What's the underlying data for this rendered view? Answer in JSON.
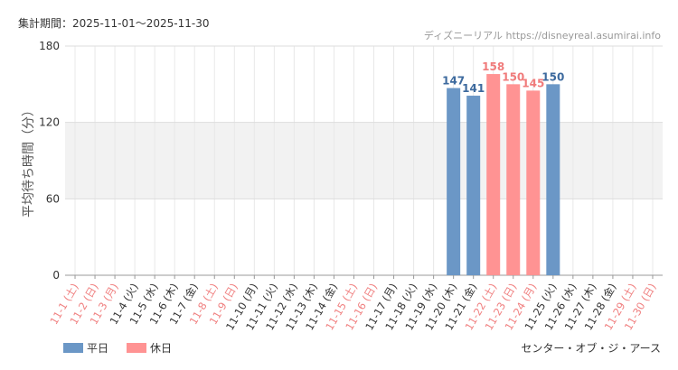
{
  "chart_data": {
    "type": "bar",
    "subtitle": "集計期間：2025-11-01～2025-11-30",
    "source": "ディズニーリアル https://disneyreal.asumirai.info",
    "y_label": "平均待ち時間（分）",
    "annotation": "センター・オブ・ジ・アース",
    "categories": [
      "11-1 (土)",
      "11-2 (日)",
      "11-3 (月)",
      "11-4 (火)",
      "11-5 (水)",
      "11-6 (木)",
      "11-7 (金)",
      "11-8 (土)",
      "11-9 (日)",
      "11-10 (月)",
      "11-11 (火)",
      "11-12 (水)",
      "11-13 (木)",
      "11-14 (金)",
      "11-15 (土)",
      "11-16 (日)",
      "11-17 (月)",
      "11-18 (火)",
      "11-19 (水)",
      "11-20 (木)",
      "11-21 (金)",
      "11-22 (土)",
      "11-23 (日)",
      "11-24 (月)",
      "11-25 (火)",
      "11-26 (水)",
      "11-27 (木)",
      "11-28 (金)",
      "11-29 (土)",
      "11-30 (日)"
    ],
    "category_colors": [
      "#f08080",
      "#f08080",
      "#f08080",
      "#333",
      "#333",
      "#333",
      "#333",
      "#f08080",
      "#f08080",
      "#333",
      "#333",
      "#333",
      "#333",
      "#333",
      "#f08080",
      "#f08080",
      "#333",
      "#333",
      "#333",
      "#333",
      "#333",
      "#f08080",
      "#f08080",
      "#f08080",
      "#333",
      "#333",
      "#333",
      "#333",
      "#f08080",
      "#f08080"
    ],
    "series": [
      {
        "name": "平日",
        "color": "#6b97c6",
        "label_color": "#3d6a9e",
        "values": [
          null,
          null,
          null,
          null,
          null,
          null,
          null,
          null,
          null,
          null,
          null,
          null,
          null,
          null,
          null,
          null,
          null,
          null,
          null,
          147,
          141,
          null,
          null,
          null,
          150,
          null,
          null,
          null,
          null,
          null
        ]
      },
      {
        "name": "休日",
        "color": "#ff9393",
        "label_color": "#f07b7b",
        "values": [
          null,
          null,
          null,
          null,
          null,
          null,
          null,
          null,
          null,
          null,
          null,
          null,
          null,
          null,
          null,
          null,
          null,
          null,
          null,
          null,
          null,
          158,
          150,
          145,
          null,
          null,
          null,
          null,
          null,
          null
        ]
      }
    ],
    "ylim": [
      0,
      180
    ],
    "yticks": [
      0,
      60,
      120,
      180
    ],
    "grid": true
  }
}
